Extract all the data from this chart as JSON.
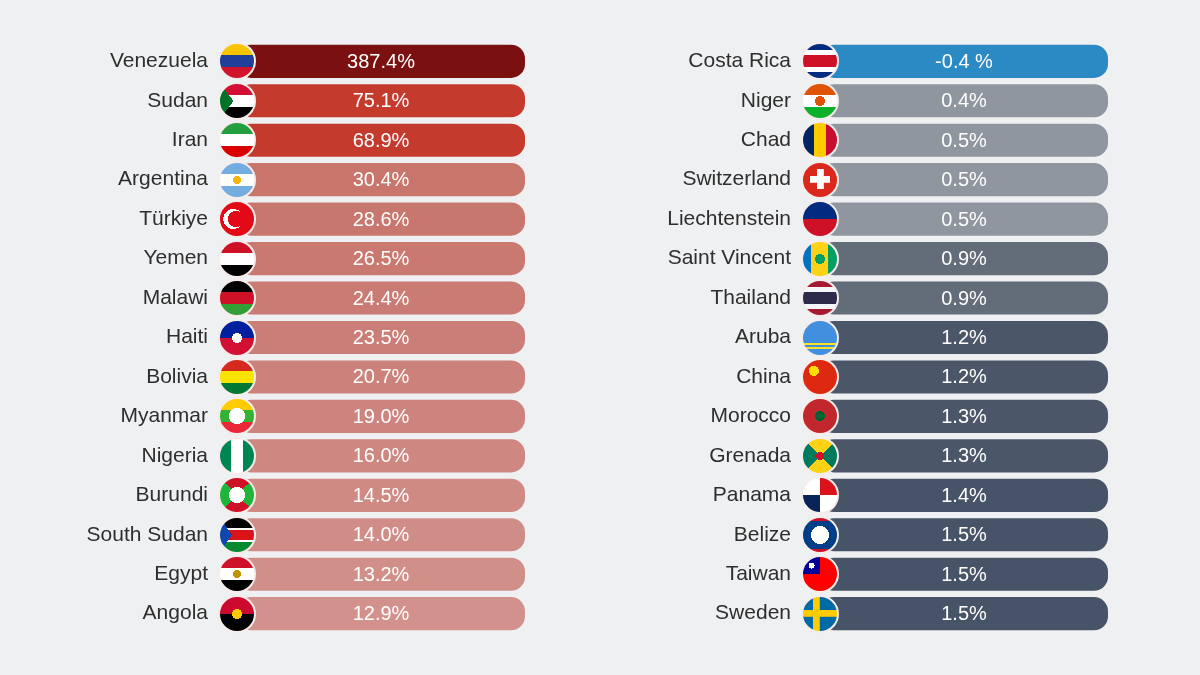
{
  "chart_data": [
    {
      "type": "other",
      "categories": [
        "Venezuela",
        "Sudan",
        "Iran",
        "Argentina",
        "Türkiye",
        "Yemen",
        "Malawi",
        "Haiti",
        "Bolivia",
        "Myanmar",
        "Nigeria",
        "Burundi",
        "South Sudan",
        "Egypt",
        "Angola"
      ],
      "values": [
        387.4,
        75.1,
        68.9,
        30.4,
        28.6,
        26.5,
        24.4,
        23.5,
        20.7,
        19.0,
        16.0,
        14.5,
        14.0,
        13.2,
        12.9
      ],
      "value_labels": [
        "387.4%",
        "75.1%",
        "68.9%",
        "30.4%",
        "28.6%",
        "26.5%",
        "24.4%",
        "23.5%",
        "20.7%",
        "19.0%",
        "16.0%",
        "14.5%",
        "14.0%",
        "13.2%",
        "12.9%"
      ],
      "colors": [
        "#7b1010",
        "#c43b2e",
        "#c43b2e",
        "#c8756c",
        "#c8776e",
        "#c97970",
        "#ca7b73",
        "#cb7e77",
        "#cc817a",
        "#cd847e",
        "#ce8781",
        "#cf8a84",
        "#d08c87",
        "#d18f8a",
        "#d2918c"
      ]
    },
    {
      "type": "other",
      "categories": [
        "Costa Rica",
        "Niger",
        "Chad",
        "Switzerland",
        "Liechtenstein",
        "Saint Vincent",
        "Thailand",
        "Aruba",
        "China",
        "Morocco",
        "Grenada",
        "Panama",
        "Belize",
        "Taiwan",
        "Sweden"
      ],
      "values": [
        -0.4,
        0.4,
        0.5,
        0.5,
        0.5,
        0.9,
        0.9,
        1.2,
        1.2,
        1.3,
        1.3,
        1.4,
        1.5,
        1.5,
        1.5
      ],
      "value_labels": [
        "-0.4 %",
        "0.4%",
        "0.5%",
        "0.5%",
        "0.5%",
        "0.9%",
        "0.9%",
        "1.2%",
        "1.2%",
        "1.3%",
        "1.3%",
        "1.4%",
        "1.5%",
        "1.5%",
        "1.5%"
      ],
      "colors": [
        "#2b8ac3",
        "#8f969f",
        "#8f969f",
        "#8f969f",
        "#8f969f",
        "#636c79",
        "#636c79",
        "#4b5668",
        "#4b5668",
        "#4b5668",
        "#4b5668",
        "#475366",
        "#475366",
        "#475366",
        "#475366"
      ]
    }
  ]
}
